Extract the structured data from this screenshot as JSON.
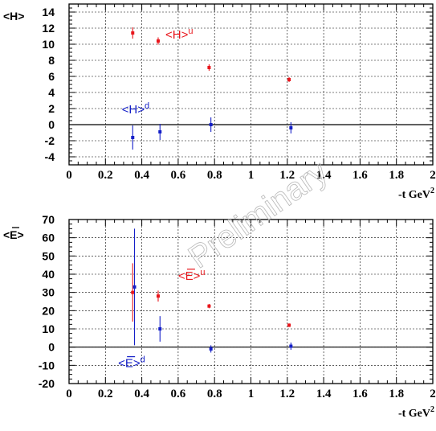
{
  "watermark": "Preliminary",
  "colors": {
    "red": "#e8161c",
    "blue": "#1520c8",
    "axis": "#000000",
    "grid": "#000000",
    "watermark": "#b8b8b8"
  },
  "chart_data": [
    {
      "type": "scatter",
      "title": "",
      "ylabel": "<H>",
      "xlabel": "-t GeV",
      "xlabel_superscript": "2",
      "xlim": [
        0,
        2
      ],
      "ylim": [
        -5,
        15
      ],
      "grid": true,
      "x_ticks": [
        0,
        0.2,
        0.4,
        0.6,
        0.8,
        1,
        1.2,
        1.4,
        1.6,
        1.8,
        2
      ],
      "x_tick_labels": [
        "0",
        "0.2",
        "0.4",
        "0.6",
        "0.8",
        "1",
        "1.2",
        "1.4",
        "1.6",
        "1.8",
        "2"
      ],
      "y_ticks": [
        -4,
        -2,
        0,
        2,
        4,
        6,
        8,
        10,
        12,
        14
      ],
      "y_tick_labels": [
        "-4",
        "-2",
        "0",
        "2",
        "4",
        "6",
        "8",
        "10",
        "12",
        "14"
      ],
      "series": [
        {
          "name": "<H>u",
          "label_text": "<H>",
          "label_sup": "u",
          "label_pos": [
            0.53,
            10.7
          ],
          "color": "#e8161c",
          "points": [
            {
              "x": 0.35,
              "y": 11.4,
              "err": 0.7
            },
            {
              "x": 0.49,
              "y": 10.4,
              "err": 0.45
            },
            {
              "x": 0.77,
              "y": 7.1,
              "err": 0.4
            },
            {
              "x": 1.21,
              "y": 5.6,
              "err": 0.3
            }
          ]
        },
        {
          "name": "<H>d",
          "label_text": "<H>",
          "label_sup": "d",
          "label_pos": [
            0.29,
            1.4
          ],
          "color": "#1520c8",
          "points": [
            {
              "x": 0.35,
              "y": -1.6,
              "err": 1.5
            },
            {
              "x": 0.5,
              "y": -0.9,
              "err": 1.0
            },
            {
              "x": 0.78,
              "y": 0.0,
              "err": 0.9
            },
            {
              "x": 1.22,
              "y": -0.4,
              "err": 0.7
            }
          ]
        }
      ]
    },
    {
      "type": "scatter",
      "title": "",
      "ylabel": "<E>",
      "ylabel_bar": true,
      "xlabel": "-t GeV",
      "xlabel_superscript": "2",
      "xlim": [
        0,
        2
      ],
      "ylim": [
        -20,
        70
      ],
      "grid": true,
      "x_ticks": [
        0,
        0.2,
        0.4,
        0.6,
        0.8,
        1,
        1.2,
        1.4,
        1.6,
        1.8,
        2
      ],
      "x_tick_labels": [
        "0",
        "0.2",
        "0.4",
        "0.6",
        "0.8",
        "1",
        "1.2",
        "1.4",
        "1.6",
        "1.8",
        "2"
      ],
      "y_ticks": [
        -20,
        -10,
        0,
        10,
        20,
        30,
        40,
        50,
        60,
        70
      ],
      "y_tick_labels": [
        "-20",
        "-10",
        "0",
        "10",
        "20",
        "30",
        "40",
        "50",
        "60",
        "70"
      ],
      "series": [
        {
          "name": "<E>u",
          "label_text": "<E>",
          "label_sup": "u",
          "label_pos": [
            0.6,
            37
          ],
          "color": "#e8161c",
          "points": [
            {
              "x": 0.35,
              "y": 30,
              "err": 16
            },
            {
              "x": 0.49,
              "y": 28,
              "err": 3
            },
            {
              "x": 0.77,
              "y": 22.5,
              "err": 1.2
            },
            {
              "x": 1.21,
              "y": 12,
              "err": 1
            }
          ]
        },
        {
          "name": "<E>d",
          "label_text": "<E>",
          "label_sup": "d",
          "label_pos": [
            0.27,
            -11
          ],
          "color": "#1520c8",
          "points": [
            {
              "x": 0.36,
              "y": 33,
              "err": 32
            },
            {
              "x": 0.5,
              "y": 10,
              "err": 7
            },
            {
              "x": 0.78,
              "y": -1,
              "err": 2
            },
            {
              "x": 1.22,
              "y": 0.5,
              "err": 2
            }
          ]
        }
      ]
    }
  ]
}
